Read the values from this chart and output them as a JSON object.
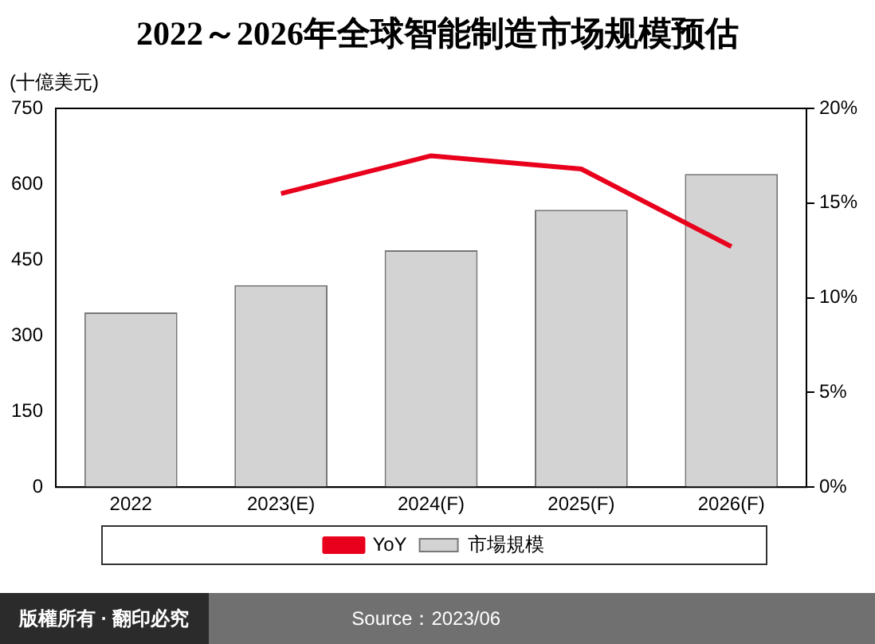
{
  "chart_data": {
    "type": "bar",
    "title": "2022～2026年全球智能制造市场规模预估",
    "ylabel": "(十億美元)",
    "categories": [
      "2022",
      "2023(E)",
      "2024(F)",
      "2025(F)",
      "2026(F)"
    ],
    "series": [
      {
        "name": "市場規模",
        "color": "#d3d3d3",
        "values": [
          346,
          400,
          469,
          549,
          620
        ]
      },
      {
        "name": "YoY",
        "type": "line",
        "axis": "y2",
        "color": "#e8001c",
        "values": [
          null,
          15.5,
          17.5,
          16.8,
          12.7
        ]
      }
    ],
    "ylim": [
      0,
      750
    ],
    "yticks": [
      0,
      150,
      300,
      450,
      600,
      750
    ],
    "y2lim": [
      0,
      20
    ],
    "y2ticks": [
      {
        "value": 0,
        "label": "0%"
      },
      {
        "value": 5,
        "label": "5%"
      },
      {
        "value": 10,
        "label": "10%"
      },
      {
        "value": 15,
        "label": "15%"
      },
      {
        "value": 20,
        "label": "20%"
      }
    ],
    "legend": "bottom",
    "marker": "none",
    "annotations": [
      "版權所有 · 翻印必究",
      "Source：2023/06"
    ]
  }
}
